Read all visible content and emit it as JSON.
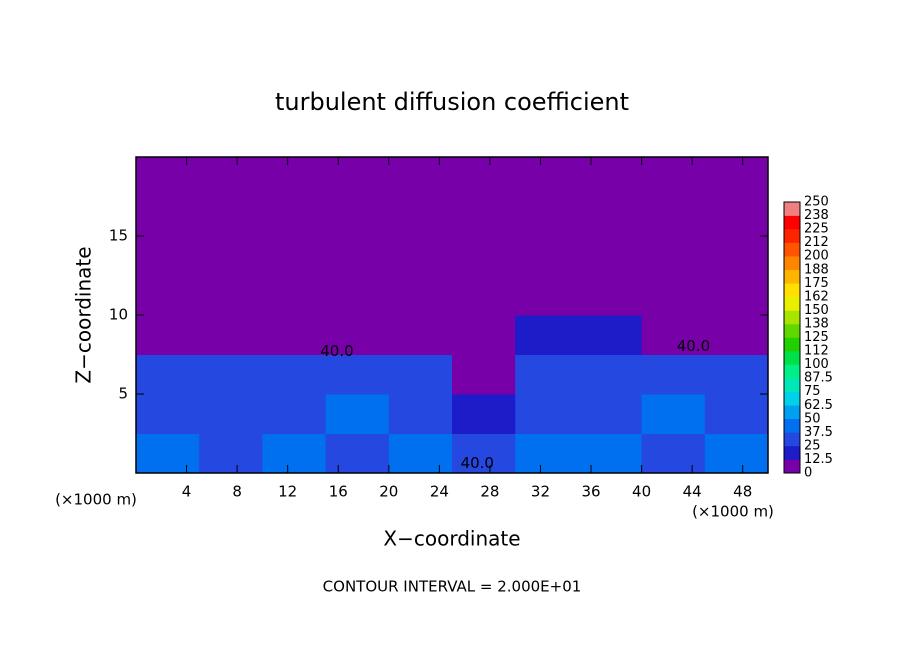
{
  "chart_data": {
    "type": "contour",
    "title": "turbulent diffusion coefficient",
    "x_label": "X−coordinate",
    "y_label": "Z−coordinate",
    "x_unit": "(×1000 m)",
    "y_unit": "(×1000 m)",
    "annotation": "CONTOUR INTERVAL = 2.000E+01",
    "xlim": [
      0,
      50
    ],
    "ylim": [
      0,
      20
    ],
    "xticks": [
      4,
      8,
      12,
      16,
      20,
      24,
      28,
      32,
      36,
      40,
      44,
      48
    ],
    "yticks": [
      5,
      10,
      15
    ],
    "x_edges": [
      0,
      5,
      10,
      15,
      20,
      25,
      30,
      35,
      40,
      45,
      50
    ],
    "z_edges": [
      0,
      2.5,
      5,
      7.5,
      10,
      20
    ],
    "z": [
      [
        40,
        35,
        40,
        35,
        40,
        30,
        40,
        40,
        35,
        40
      ],
      [
        35,
        30,
        35,
        40,
        35,
        20,
        35,
        35,
        40,
        30
      ],
      [
        30,
        25,
        30,
        35,
        25,
        5,
        30,
        30,
        30,
        25
      ],
      [
        5,
        5,
        10,
        10,
        0,
        0,
        20,
        15,
        5,
        5
      ],
      [
        0,
        0,
        0,
        0,
        0,
        0,
        0,
        0,
        0,
        0
      ]
    ],
    "levels": [
      0,
      12.5,
      25,
      37.5,
      50,
      62.5,
      75,
      87.5,
      100,
      {
        "value": 112.5,
        "label": "112"
      },
      125,
      {
        "value": 137.5,
        "label": "138"
      },
      150,
      {
        "value": 162.5,
        "label": "162"
      },
      175,
      {
        "value": 187.5,
        "label": "188"
      },
      200,
      {
        "value": 212.5,
        "label": "212"
      },
      225,
      {
        "value": 237.5,
        "label": "238"
      },
      250
    ],
    "colors": [
      "#7800a8",
      "#1c1cc8",
      "#2448e0",
      "#0070f0",
      "#00a0f0",
      "#00d0e8",
      "#00e8b8",
      "#00f088",
      "#00e048",
      "#20d000",
      "#60d800",
      "#a8e400",
      "#e8f000",
      "#ffe000",
      "#ffb400",
      "#ff8400",
      "#ff5400",
      "#ff2400",
      "#ff0000",
      "#f08080"
    ],
    "contour_labels": [
      {
        "value": 40,
        "label": "40.0",
        "x": 15.9,
        "z": 7.7
      },
      {
        "value": 40,
        "label": "40.0",
        "x": 44.1,
        "z": 8.0
      },
      {
        "value": 40,
        "label": "40.0",
        "x": 27,
        "z": 0.6
      }
    ]
  }
}
